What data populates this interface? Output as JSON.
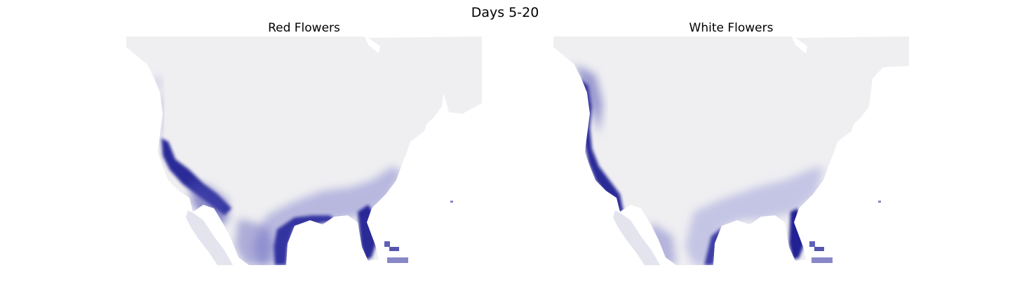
{
  "figure": {
    "title": "Days 5-20"
  },
  "panels": [
    {
      "id": "red",
      "title": "Red Flowers"
    },
    {
      "id": "white",
      "title": "White Flowers"
    }
  ],
  "colors": {
    "land_base": "#efeff2",
    "intensity_high": "#0a0a8c",
    "background": "#ffffff"
  }
}
